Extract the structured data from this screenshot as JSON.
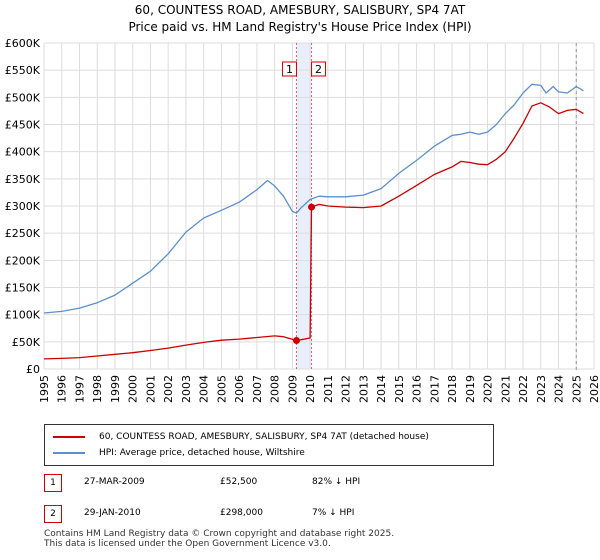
{
  "header": {
    "title": "60, COUNTESS ROAD, AMESBURY, SALISBURY, SP4 7AT",
    "subtitle": "Price paid vs. HM Land Registry's House Price Index (HPI)"
  },
  "colors": {
    "property": "#cc0000",
    "hpi": "#5b8fcf",
    "band": "#e8eefa",
    "marker_line": "#cc0000"
  },
  "chart_data": {
    "type": "line",
    "title": "Price paid vs. HM Land Registry's House Price Index (HPI)",
    "x_range": [
      1995,
      2026
    ],
    "ylim": [
      0,
      600000
    ],
    "x_ticks": [
      "1995",
      "1996",
      "1997",
      "1998",
      "1999",
      "2000",
      "2001",
      "2002",
      "2003",
      "2004",
      "2005",
      "2006",
      "2007",
      "2008",
      "2009",
      "2010",
      "2011",
      "2012",
      "2013",
      "2014",
      "2015",
      "2016",
      "2017",
      "2018",
      "2019",
      "2020",
      "2021",
      "2022",
      "2023",
      "2024",
      "2025",
      "2026"
    ],
    "y_ticks": [
      {
        "value": 0,
        "label": "£0"
      },
      {
        "value": 50000,
        "label": "£50K"
      },
      {
        "value": 100000,
        "label": "£100K"
      },
      {
        "value": 150000,
        "label": "£150K"
      },
      {
        "value": 200000,
        "label": "£200K"
      },
      {
        "value": 250000,
        "label": "£250K"
      },
      {
        "value": 300000,
        "label": "£300K"
      },
      {
        "value": 350000,
        "label": "£350K"
      },
      {
        "value": 400000,
        "label": "£400K"
      },
      {
        "value": 450000,
        "label": "£450K"
      },
      {
        "value": 500000,
        "label": "£500K"
      },
      {
        "value": 550000,
        "label": "£550K"
      },
      {
        "value": 600000,
        "label": "£600K"
      }
    ],
    "grid": true,
    "shaded_band": [
      2009.23,
      2010.08
    ],
    "series": [
      {
        "name": "60, COUNTESS ROAD, AMESBURY, SALISBURY, SP4 7AT (detached house)",
        "color": "#cc0000",
        "x": [
          1995,
          1996,
          1997,
          1998,
          1999,
          2000,
          2001,
          2002,
          2003,
          2004,
          2005,
          2006,
          2007,
          2008,
          2008.5,
          2009.23,
          2009.5,
          2010.0,
          2010.08,
          2010.5,
          2011,
          2012,
          2013,
          2014,
          2015,
          2016,
          2017,
          2018,
          2018.5,
          2019,
          2019.5,
          2020,
          2020.5,
          2021,
          2021.5,
          2022,
          2022.5,
          2023,
          2023.5,
          2024,
          2024.5,
          2025,
          2025.4
        ],
        "values": [
          18500,
          19500,
          21000,
          24000,
          27000,
          30000,
          34000,
          38500,
          44000,
          49000,
          53000,
          55000,
          58000,
          61000,
          59500,
          52500,
          54000,
          57000,
          298000,
          303000,
          300000,
          298000,
          297000,
          300000,
          318000,
          338000,
          358000,
          372000,
          382000,
          380000,
          377000,
          376000,
          386000,
          400000,
          425000,
          452000,
          484000,
          490000,
          482000,
          470000,
          476000,
          478000,
          470000
        ]
      },
      {
        "name": "HPI: Average price, detached house, Wiltshire",
        "color": "#5b8fcf",
        "x": [
          1995,
          1996,
          1997,
          1998,
          1999,
          2000,
          2001,
          2002,
          2003,
          2004,
          2005,
          2006,
          2007,
          2007.6,
          2008,
          2008.5,
          2009,
          2009.23,
          2009.5,
          2010,
          2010.5,
          2011,
          2012,
          2013,
          2014,
          2015,
          2016,
          2017,
          2018,
          2018.5,
          2019,
          2019.5,
          2020,
          2020.5,
          2021,
          2021.5,
          2022,
          2022.5,
          2023,
          2023.3,
          2023.7,
          2024,
          2024.5,
          2025,
          2025.4
        ],
        "values": [
          103000,
          106000,
          112000,
          122000,
          136000,
          158000,
          180000,
          212000,
          252000,
          278000,
          292000,
          307000,
          330000,
          347000,
          337000,
          318000,
          290000,
          287000,
          297000,
          312000,
          318000,
          317000,
          317000,
          320000,
          332000,
          360000,
          384000,
          410000,
          430000,
          432000,
          436000,
          432000,
          436000,
          450000,
          470000,
          486000,
          508000,
          524000,
          522000,
          508000,
          520000,
          510000,
          508000,
          520000,
          512000
        ]
      }
    ],
    "transactions": [
      {
        "marker": "1",
        "x": 2009.23,
        "value": 52500
      },
      {
        "marker": "2",
        "x": 2010.08,
        "value": 298000
      }
    ]
  },
  "legend": {
    "property_label": "60, COUNTESS ROAD, AMESBURY, SALISBURY, SP4 7AT (detached house)",
    "hpi_label": "HPI: Average price, detached house, Wiltshire"
  },
  "transactions_table": [
    {
      "num": "1",
      "date": "27-MAR-2009",
      "price": "£52,500",
      "hpi": "82% ↓ HPI"
    },
    {
      "num": "2",
      "date": "29-JAN-2010",
      "price": "£298,000",
      "hpi": "7% ↓ HPI"
    }
  ],
  "footer": {
    "line1": "Contains HM Land Registry data © Crown copyright and database right 2025.",
    "line2": "This data is licensed under the Open Government Licence v3.0."
  }
}
